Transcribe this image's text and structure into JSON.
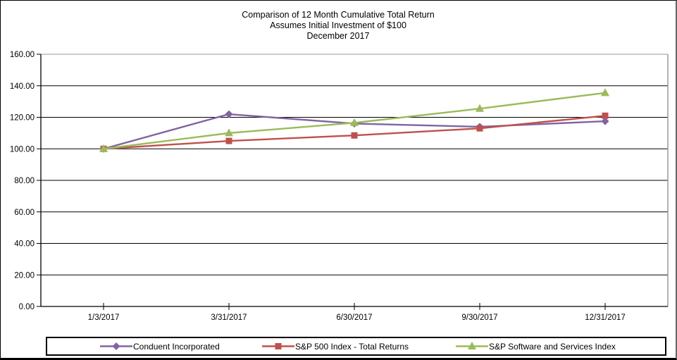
{
  "chart_data": {
    "type": "line",
    "title": "Comparison of 12 Month Cumulative Total Return",
    "subtitle": "Assumes Initial Investment of $100",
    "subtitle2": "December 2017",
    "categories": [
      "1/3/2017",
      "3/31/2017",
      "6/30/2017",
      "9/30/2017",
      "12/31/2017"
    ],
    "series": [
      {
        "name": "Conduent Incorporated",
        "color": "#8064A2",
        "marker": "diamond",
        "values": [
          100.0,
          122.0,
          116.0,
          114.0,
          117.5
        ]
      },
      {
        "name": "S&P 500 Index - Total Returns",
        "color": "#C0504D",
        "marker": "square",
        "values": [
          100.0,
          105.0,
          108.5,
          113.0,
          121.0
        ]
      },
      {
        "name": "S&P Software and Services Index",
        "color": "#9BBB59",
        "marker": "triangle",
        "values": [
          100.0,
          110.0,
          116.5,
          125.5,
          135.5
        ]
      }
    ],
    "ylim": [
      0,
      160
    ],
    "ytick_step": 20,
    "ytick_labels": [
      "0.00",
      "20.00",
      "40.00",
      "60.00",
      "80.00",
      "100.00",
      "120.00",
      "140.00",
      "160.00"
    ],
    "grid": "horizontal",
    "legend_position": "bottom",
    "axis_color": "#000000",
    "plot_border_color": "#9a9a9a",
    "background": "#ffffff"
  }
}
